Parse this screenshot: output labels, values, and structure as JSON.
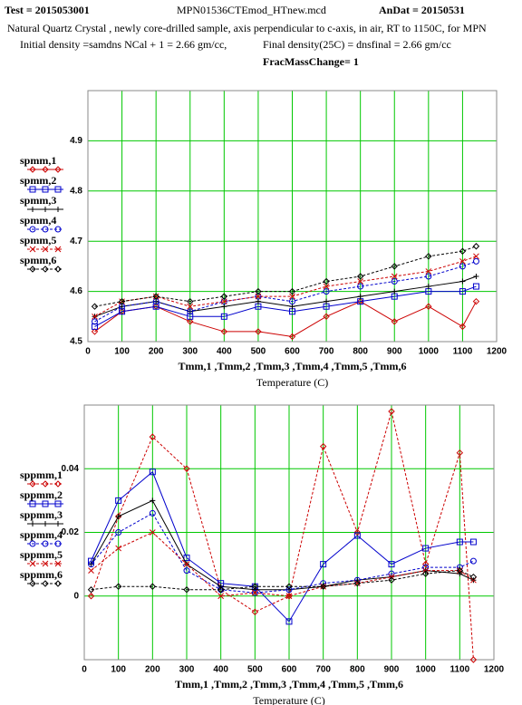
{
  "header": {
    "test": "Test = 2015053001",
    "file": "MPN01536CTEmod_HTnew.mcd",
    "andat": "AnDat = 20150531",
    "description": "Natural Quartz Crystal , newly core-drilled sample, axis perpendicular to c-axis, in air, RT to 1150C, for MPN",
    "initial_density": "Initial density =samdns NCal + 1 = 2.66 gm/cc,",
    "final_density": "Final density(25C) = dnsfinal = 2.66 gm/cc",
    "frac_mass_change": "FracMassChange= 1"
  },
  "chart_data": [
    {
      "type": "line",
      "xlabel": "Tmm,1 ,Tmm,2 ,Tmm,3 ,Tmm,4 ,Tmm,5 ,Tmm,6",
      "xlabel2": "Temperature (C)",
      "x": [
        20,
        100,
        200,
        300,
        400,
        500,
        600,
        700,
        800,
        900,
        1000,
        1100,
        1140
      ],
      "xlim": [
        0,
        1200
      ],
      "xticks": [
        0,
        100,
        200,
        300,
        400,
        500,
        600,
        700,
        800,
        900,
        1000,
        1100,
        1200
      ],
      "ylim": [
        4.5,
        5.0
      ],
      "yticks": [
        4.5,
        4.6,
        4.7,
        4.8,
        4.9
      ],
      "grid": true,
      "grid_color": "#00c800",
      "legend": "left",
      "series": [
        {
          "name": "spmm,1",
          "color": "#cc0000",
          "marker": "diamond",
          "dash": false,
          "values": [
            4.52,
            4.56,
            4.57,
            4.54,
            4.52,
            4.52,
            4.51,
            4.55,
            4.58,
            4.54,
            4.57,
            4.53,
            4.58
          ]
        },
        {
          "name": "spmm,2",
          "color": "#0000cc",
          "marker": "square",
          "dash": false,
          "values": [
            4.53,
            4.56,
            4.57,
            4.55,
            4.55,
            4.57,
            4.56,
            4.57,
            4.58,
            4.59,
            4.6,
            4.6,
            4.61
          ]
        },
        {
          "name": "spmm,3",
          "color": "#000000",
          "marker": "plus",
          "dash": false,
          "values": [
            4.55,
            4.57,
            4.58,
            4.56,
            4.57,
            4.58,
            4.57,
            4.58,
            4.59,
            4.6,
            4.61,
            4.62,
            4.63
          ]
        },
        {
          "name": "spmm,4",
          "color": "#0000cc",
          "marker": "circle",
          "dash": true,
          "values": [
            4.54,
            4.57,
            4.58,
            4.56,
            4.58,
            4.59,
            4.58,
            4.6,
            4.61,
            4.62,
            4.63,
            4.65,
            4.66
          ]
        },
        {
          "name": "spmm,5",
          "color": "#cc0000",
          "marker": "x",
          "dash": true,
          "values": [
            4.55,
            4.58,
            4.59,
            4.57,
            4.58,
            4.59,
            4.59,
            4.61,
            4.62,
            4.63,
            4.64,
            4.66,
            4.67
          ]
        },
        {
          "name": "spmm,6",
          "color": "#000000",
          "marker": "diamond",
          "dash": true,
          "values": [
            4.57,
            4.58,
            4.59,
            4.58,
            4.59,
            4.6,
            4.6,
            4.62,
            4.63,
            4.65,
            4.67,
            4.68,
            4.69
          ]
        }
      ]
    },
    {
      "type": "line",
      "xlabel": "Tmm,1 ,Tmm,2 ,Tmm,3 ,Tmm,4 ,Tmm,5 ,Tmm,6",
      "xlabel2": "Temperature (C)",
      "x": [
        20,
        100,
        200,
        300,
        400,
        500,
        600,
        700,
        800,
        900,
        1000,
        1100,
        1140
      ],
      "xlim": [
        0,
        1200
      ],
      "xticks": [
        0,
        100,
        200,
        300,
        400,
        500,
        600,
        700,
        800,
        900,
        1000,
        1100,
        1200
      ],
      "ylim": [
        -0.02,
        0.06
      ],
      "yticks": [
        0,
        0.02,
        0.04
      ],
      "grid": true,
      "grid_color": "#00c800",
      "legend": "left",
      "series": [
        {
          "name": "sppmm,1",
          "color": "#cc0000",
          "marker": "diamond",
          "dash": true,
          "values": [
            0.0,
            0.025,
            0.05,
            0.04,
            0.002,
            -0.005,
            0.0,
            0.047,
            0.02,
            0.058,
            0.01,
            0.045,
            -0.02
          ]
        },
        {
          "name": "sppmm,2",
          "color": "#0000cc",
          "marker": "square",
          "dash": false,
          "values": [
            0.011,
            0.03,
            0.039,
            0.012,
            0.004,
            0.003,
            -0.008,
            0.01,
            0.019,
            0.01,
            0.015,
            0.017,
            0.017
          ]
        },
        {
          "name": "sppmm,3",
          "color": "#000000",
          "marker": "plus",
          "dash": false,
          "values": [
            0.01,
            0.025,
            0.03,
            0.01,
            0.003,
            0.002,
            0.002,
            0.003,
            0.005,
            0.006,
            0.008,
            0.007,
            0.005
          ]
        },
        {
          "name": "sppmm,4",
          "color": "#0000cc",
          "marker": "circle",
          "dash": true,
          "values": [
            0.01,
            0.02,
            0.026,
            0.008,
            0.002,
            0.001,
            0.002,
            0.004,
            0.005,
            0.007,
            0.009,
            0.009,
            0.011
          ]
        },
        {
          "name": "sppmm,5",
          "color": "#cc0000",
          "marker": "x",
          "dash": true,
          "values": [
            0.008,
            0.015,
            0.02,
            0.01,
            0.0,
            0.001,
            0.0,
            0.003,
            0.004,
            0.006,
            0.008,
            0.008,
            0.005
          ]
        },
        {
          "name": "sppmm,6",
          "color": "#000000",
          "marker": "diamond",
          "dash": true,
          "values": [
            0.002,
            0.003,
            0.003,
            0.002,
            0.002,
            0.003,
            0.003,
            0.003,
            0.004,
            0.005,
            0.007,
            0.008,
            0.006
          ]
        }
      ]
    }
  ]
}
